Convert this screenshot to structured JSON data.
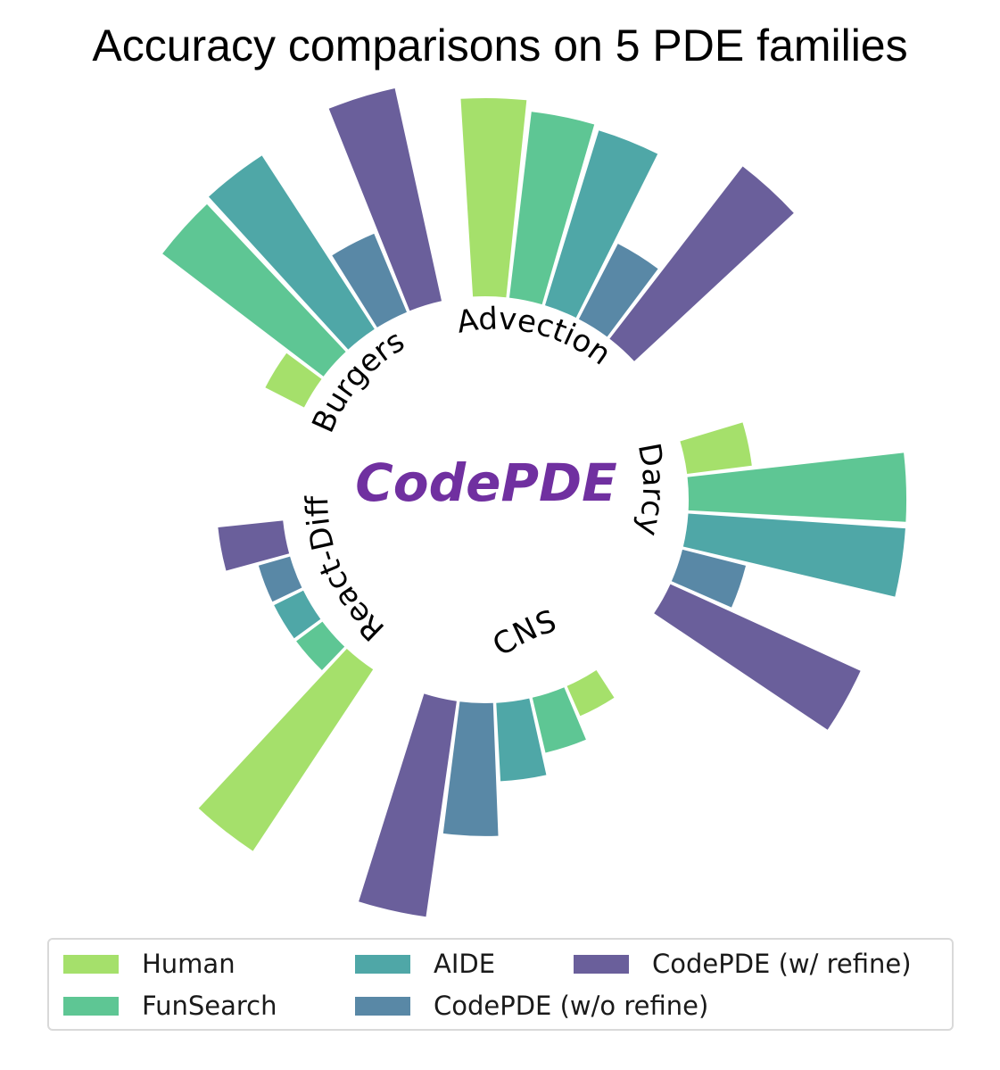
{
  "title": "Accuracy comparisons on 5 PDE families",
  "colors": {
    "Human": "#a5e06b",
    "FunSearch": "#5ec694",
    "AIDE": "#4fa7a7",
    "CodePDE (w/o refine)": "#5988a6",
    "CodePDE (w/ refine)": "#6a5f9b",
    "center_text": "#7030a0"
  },
  "chart_data": {
    "type": "radial-bar",
    "title": "Accuracy comparisons on 5 PDE families",
    "center_label": "CodePDE",
    "methods": [
      "Human",
      "FunSearch",
      "AIDE",
      "CodePDE (w/o refine)",
      "CodePDE (w/ refine)"
    ],
    "families": [
      {
        "name": "Advection",
        "values": [
          0.91,
          0.86,
          0.84,
          0.39,
          1.0
        ]
      },
      {
        "name": "Darcy",
        "values": [
          0.3,
          1.0,
          1.0,
          0.3,
          0.96
        ]
      },
      {
        "name": "CNS",
        "values": [
          0.15,
          0.26,
          0.36,
          0.61,
          1.0
        ]
      },
      {
        "name": "React-Diff",
        "values": [
          1.0,
          0.15,
          0.15,
          0.15,
          0.3
        ]
      },
      {
        "name": "Burgers",
        "values": [
          0.2,
          0.93,
          0.95,
          0.39,
          1.0
        ]
      }
    ],
    "legend": {
      "location": "bottom",
      "columns": 3,
      "entries": [
        "Human",
        "FunSearch",
        "AIDE",
        "CodePDE (w/o refine)",
        "CodePDE (w/ refine)"
      ]
    }
  }
}
